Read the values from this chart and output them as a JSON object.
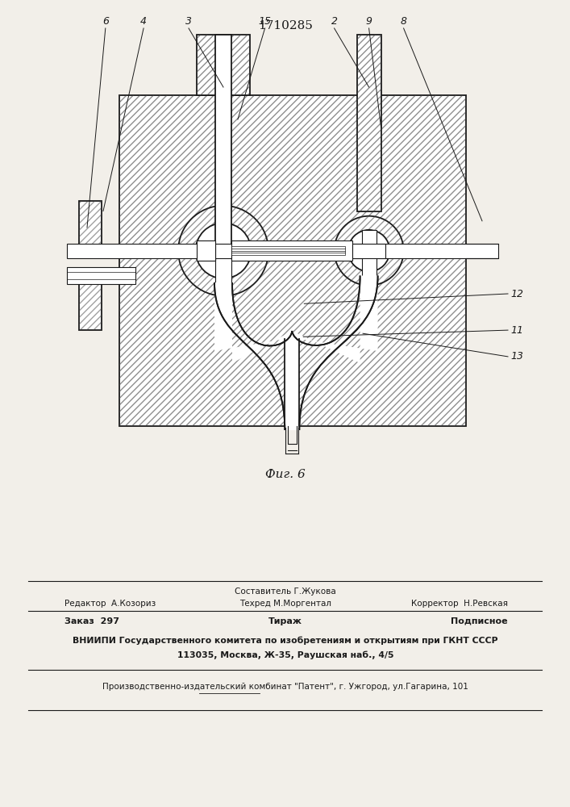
{
  "patent_number": "1710285",
  "fig_label": "Фиг. 6",
  "bg_color": "#f2efe9",
  "drawing_color": "#1a1a1a",
  "hatch_color": "#444444",
  "footer": {
    "editor": "Редактор  А.Козориз",
    "composer": "Составитель Г.Жукова",
    "techred": "Техред М.Моргентал",
    "corrector": "Корректор  Н.Ревская",
    "order": "Заказ  297",
    "tirazh": "Тираж",
    "podpisnoe": "Подписное",
    "vniipи1": "ВНИИПИ Государственного комитета по изобретениям и открытиям при ГКНТ СССР",
    "vniipи2": "113035, Москва, Ж-35, Раушская наб., 4/5",
    "proizv": "Производственно-издательский комбинат \"Патент\", г. Ужгород, ул.Гагарина, 101"
  }
}
